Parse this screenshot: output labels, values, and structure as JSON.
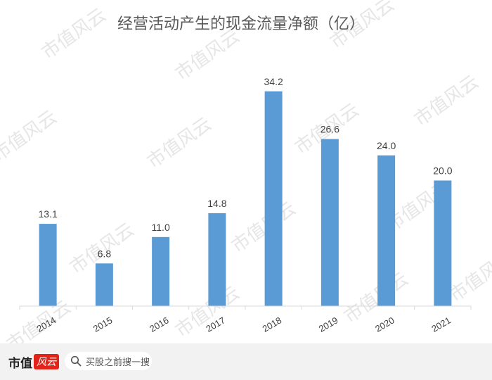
{
  "chart_data": {
    "type": "bar",
    "title": "经营活动产生的现金流量净额（亿）",
    "categories": [
      "2014",
      "2015",
      "2016",
      "2017",
      "2018",
      "2019",
      "2020",
      "2021"
    ],
    "values": [
      13.1,
      6.8,
      11.0,
      14.8,
      34.2,
      26.6,
      24.0,
      20.0
    ],
    "value_labels": [
      "13.1",
      "6.8",
      "11.0",
      "14.8",
      "34.2",
      "26.6",
      "24.0",
      "20.0"
    ],
    "xlabel": "",
    "ylabel": "",
    "ylim": [
      0,
      40
    ],
    "grid": false,
    "legend": "none",
    "bar_color": "#5b9bd5"
  },
  "watermark": {
    "text": "市值风云"
  },
  "footer": {
    "logo_text": "市值",
    "logo_badge": "风云",
    "search_icon": "search-icon",
    "search_text": "买股之前搜一搜"
  }
}
